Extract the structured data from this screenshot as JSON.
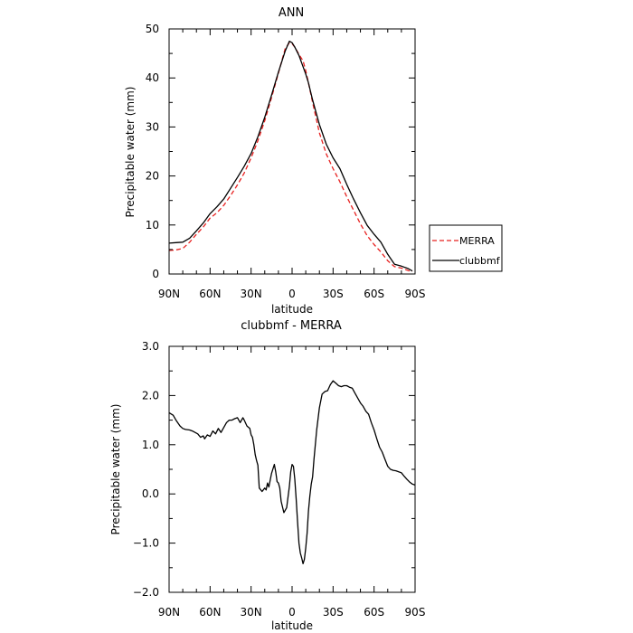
{
  "chart_data": [
    {
      "type": "line",
      "title": "ANN",
      "xlabel": "latitude",
      "ylabel": "Precipitable water  (mm)",
      "xlim": [
        90,
        -90
      ],
      "ylim": [
        0,
        50
      ],
      "x_ticks": [
        90,
        60,
        30,
        0,
        -30,
        -60,
        -90
      ],
      "x_tick_labels": [
        "90N",
        "60N",
        "30N",
        "0",
        "30S",
        "60S",
        "90S"
      ],
      "y_ticks": [
        0,
        10,
        20,
        30,
        40,
        50
      ],
      "y_tick_labels": [
        "0",
        "10",
        "20",
        "30",
        "40",
        "50"
      ],
      "grid": false,
      "legend_position": "outside-right",
      "series": [
        {
          "name": "MERRA",
          "color": "#e8201f",
          "dash": "dashed",
          "x": [
            90,
            85,
            80,
            75,
            70,
            65,
            60,
            55,
            50,
            45,
            40,
            35,
            30,
            25,
            20,
            15,
            10,
            5,
            2,
            0,
            -2,
            -5,
            -8,
            -10,
            -12,
            -15,
            -20,
            -25,
            -30,
            -35,
            -40,
            -45,
            -50,
            -55,
            -60,
            -65,
            -70,
            -75,
            -80,
            -85,
            -88
          ],
          "y": [
            4.8,
            4.9,
            5.2,
            6.5,
            8.1,
            9.6,
            11.4,
            12.5,
            14.0,
            16.0,
            18.2,
            20.6,
            23.7,
            27.2,
            31.3,
            36.0,
            41.0,
            46.0,
            47.2,
            47.0,
            46.3,
            44.8,
            43.5,
            41.5,
            39.0,
            35.0,
            28.8,
            24.5,
            21.5,
            18.8,
            15.8,
            13.0,
            10.2,
            7.8,
            6.0,
            4.5,
            2.7,
            1.5,
            1.2,
            0.7,
            0.5
          ]
        },
        {
          "name": "clubbmf",
          "color": "#000000",
          "dash": "solid",
          "x": [
            90,
            85,
            80,
            75,
            70,
            65,
            60,
            55,
            50,
            45,
            40,
            35,
            30,
            25,
            20,
            15,
            10,
            5,
            2,
            0,
            -2,
            -5,
            -8,
            -10,
            -12,
            -15,
            -20,
            -25,
            -30,
            -35,
            -40,
            -45,
            -50,
            -55,
            -60,
            -65,
            -70,
            -75,
            -80,
            -85,
            -88
          ],
          "y": [
            6.3,
            6.4,
            6.5,
            7.3,
            8.8,
            10.4,
            12.3,
            13.7,
            15.3,
            17.5,
            19.7,
            22.0,
            24.6,
            28.0,
            32.0,
            36.5,
            41.2,
            45.5,
            47.5,
            47.2,
            46.3,
            44.6,
            42.3,
            40.8,
            39.0,
            35.5,
            30.5,
            26.5,
            23.7,
            21.5,
            18.3,
            15.3,
            12.5,
            9.9,
            8.1,
            6.5,
            4.0,
            2.0,
            1.6,
            1.1,
            0.6
          ]
        }
      ]
    },
    {
      "type": "line",
      "title": "clubbmf  -  MERRA",
      "xlabel": "latitude",
      "ylabel": "Precipitable water  (mm)",
      "xlim": [
        90,
        -90
      ],
      "ylim": [
        -2.0,
        3.0
      ],
      "x_ticks": [
        90,
        60,
        30,
        0,
        -30,
        -60,
        -90
      ],
      "x_tick_labels": [
        "90N",
        "60N",
        "30N",
        "0",
        "30S",
        "60S",
        "90S"
      ],
      "y_ticks": [
        -2.0,
        -1.0,
        0.0,
        1.0,
        2.0,
        3.0
      ],
      "y_tick_labels": [
        "−2.0",
        "−1.0",
        "0.0",
        "1.0",
        "2.0",
        "3.0"
      ],
      "grid": false,
      "series": [
        {
          "color": "#000000",
          "dash": "solid",
          "x": [
            90,
            87,
            85,
            82,
            80,
            78,
            75,
            73,
            71,
            69,
            67,
            65,
            64,
            62,
            60,
            58,
            56,
            54,
            52,
            50,
            48,
            46,
            44,
            42,
            40,
            38,
            36,
            35,
            33,
            31,
            30,
            29,
            28,
            27,
            26,
            25,
            24,
            22,
            20,
            19,
            18,
            17,
            16,
            15,
            13,
            12,
            11,
            10,
            9,
            8,
            6,
            4,
            2,
            1,
            0,
            -1,
            -2,
            -3,
            -4,
            -5,
            -6,
            -7,
            -8,
            -9,
            -10,
            -11,
            -12,
            -13,
            -14,
            -15,
            -16,
            -18,
            -20,
            -22,
            -24,
            -26,
            -28,
            -30,
            -32,
            -34,
            -36,
            -38,
            -40,
            -42,
            -44,
            -46,
            -48,
            -50,
            -52,
            -54,
            -56,
            -58,
            -60,
            -62,
            -64,
            -66,
            -68,
            -70,
            -72,
            -74,
            -76,
            -78,
            -80,
            -82,
            -84,
            -86,
            -88,
            -90
          ],
          "y": [
            1.65,
            1.6,
            1.5,
            1.38,
            1.33,
            1.31,
            1.3,
            1.28,
            1.25,
            1.22,
            1.15,
            1.18,
            1.12,
            1.2,
            1.17,
            1.28,
            1.22,
            1.33,
            1.25,
            1.35,
            1.45,
            1.5,
            1.5,
            1.53,
            1.55,
            1.45,
            1.55,
            1.5,
            1.38,
            1.33,
            1.2,
            1.15,
            1.0,
            0.8,
            0.68,
            0.58,
            0.12,
            0.05,
            0.12,
            0.08,
            0.22,
            0.14,
            0.28,
            0.42,
            0.6,
            0.45,
            0.25,
            0.22,
            0.12,
            -0.15,
            -0.38,
            -0.28,
            0.15,
            0.45,
            0.6,
            0.56,
            0.3,
            -0.1,
            -0.55,
            -1.0,
            -1.2,
            -1.3,
            -1.42,
            -1.33,
            -1.1,
            -0.8,
            -0.35,
            -0.05,
            0.2,
            0.35,
            0.7,
            1.3,
            1.75,
            2.03,
            2.08,
            2.1,
            2.22,
            2.3,
            2.25,
            2.2,
            2.18,
            2.2,
            2.2,
            2.17,
            2.15,
            2.05,
            1.95,
            1.85,
            1.78,
            1.68,
            1.62,
            1.45,
            1.3,
            1.12,
            0.95,
            0.85,
            0.7,
            0.56,
            0.5,
            0.48,
            0.47,
            0.45,
            0.43,
            0.36,
            0.3,
            0.24,
            0.2,
            0.18
          ]
        }
      ]
    }
  ]
}
